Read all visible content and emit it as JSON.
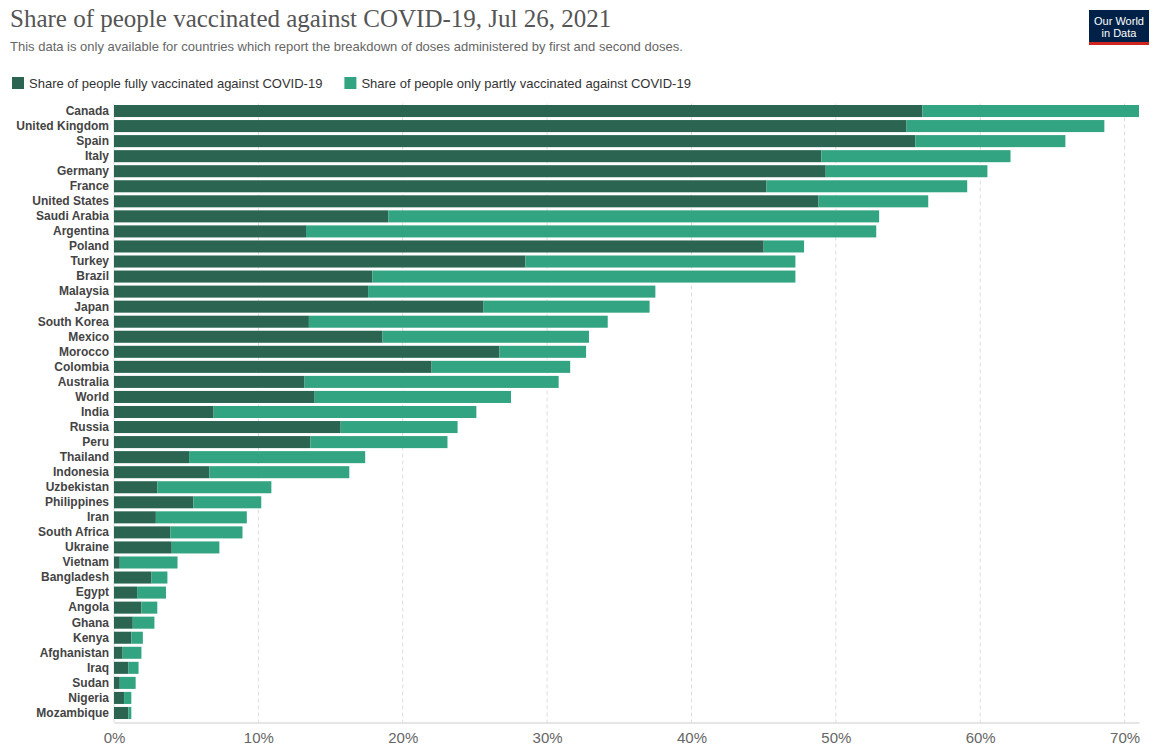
{
  "chart_data": {
    "type": "bar",
    "orientation": "horizontal",
    "stacked": true,
    "grid": true,
    "legend": "top-left",
    "title": "Share of people vaccinated against COVID-19, Jul 26, 2021",
    "subtitle": "This data is only available for countries which report the breakdown of doses administered by first and second doses.",
    "annotations": [
      "Our World",
      "in Data"
    ],
    "categories": [
      "Canada",
      "United Kingdom",
      "Spain",
      "Italy",
      "Germany",
      "France",
      "United States",
      "Saudi Arabia",
      "Argentina",
      "Poland",
      "Turkey",
      "Brazil",
      "Malaysia",
      "Japan",
      "South Korea",
      "Mexico",
      "Morocco",
      "Colombia",
      "Australia",
      "World",
      "India",
      "Russia",
      "Peru",
      "Thailand",
      "Indonesia",
      "Uzbekistan",
      "Philippines",
      "Iran",
      "South Africa",
      "Ukraine",
      "Vietnam",
      "Bangladesh",
      "Egypt",
      "Angola",
      "Ghana",
      "Kenya",
      "Afghanistan",
      "Iraq",
      "Sudan",
      "Nigeria",
      "Mozambique"
    ],
    "series": [
      {
        "name": "Share of people fully vaccinated against COVID-19",
        "color": "#2b6552",
        "values": [
          56.0,
          54.9,
          55.5,
          49.0,
          49.3,
          45.2,
          48.8,
          19.0,
          13.3,
          45.0,
          28.5,
          17.9,
          17.6,
          25.6,
          13.5,
          18.6,
          26.7,
          22.0,
          13.2,
          13.9,
          6.9,
          15.7,
          13.6,
          5.2,
          6.6,
          3.0,
          5.5,
          2.9,
          3.9,
          4.0,
          0.4,
          2.6,
          1.6,
          1.9,
          1.3,
          1.2,
          0.6,
          1.0,
          0.4,
          0.7,
          1.0
        ]
      },
      {
        "name": "Share of people only partly vaccinated against COVID-19",
        "color": "#33a481",
        "values": [
          15.0,
          13.7,
          10.4,
          13.1,
          11.2,
          13.9,
          7.6,
          34.0,
          39.5,
          2.8,
          18.7,
          29.3,
          19.9,
          11.5,
          20.7,
          14.3,
          6.0,
          9.6,
          17.6,
          13.6,
          18.2,
          8.1,
          9.5,
          12.2,
          9.7,
          7.9,
          4.7,
          6.3,
          5.0,
          3.3,
          4.0,
          1.1,
          2.0,
          1.1,
          1.5,
          0.8,
          1.3,
          0.7,
          1.1,
          0.5,
          0.2
        ]
      }
    ],
    "xlim": [
      0,
      71
    ],
    "xticks": [
      {
        "value": 0,
        "label": "0%"
      },
      {
        "value": 10,
        "label": "10%"
      },
      {
        "value": 20,
        "label": "20%"
      },
      {
        "value": 30,
        "label": "30%"
      },
      {
        "value": 40,
        "label": "40%"
      },
      {
        "value": 50,
        "label": "50%"
      },
      {
        "value": 60,
        "label": "60%"
      },
      {
        "value": 70,
        "label": "70%"
      }
    ]
  }
}
